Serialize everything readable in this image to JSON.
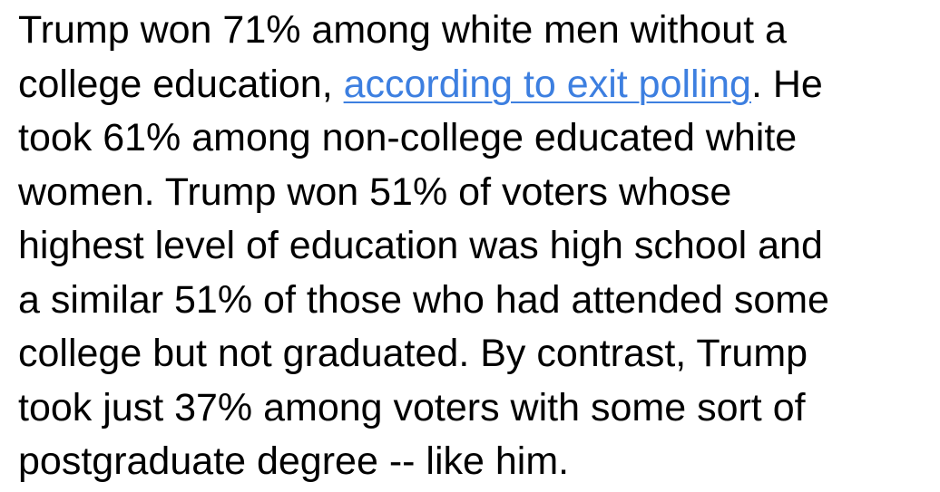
{
  "article": {
    "lines": [
      {
        "text": "Trump won 71% among white men without a"
      },
      {
        "before": "college education, ",
        "link": "according to exit polling",
        "after": ". He"
      },
      {
        "text": "took 61% among non-college educated white"
      },
      {
        "text": "women. Trump won 51% of voters whose"
      },
      {
        "text": "highest level of education was high school and"
      },
      {
        "text": "a similar 51% of those who had attended some"
      },
      {
        "text": "college but not graduated. By contrast, Trump"
      },
      {
        "text": "took just 37% among voters with some sort of"
      },
      {
        "text": "postgraduate degree -- like him."
      }
    ],
    "link_color": "#3d7fe0"
  }
}
